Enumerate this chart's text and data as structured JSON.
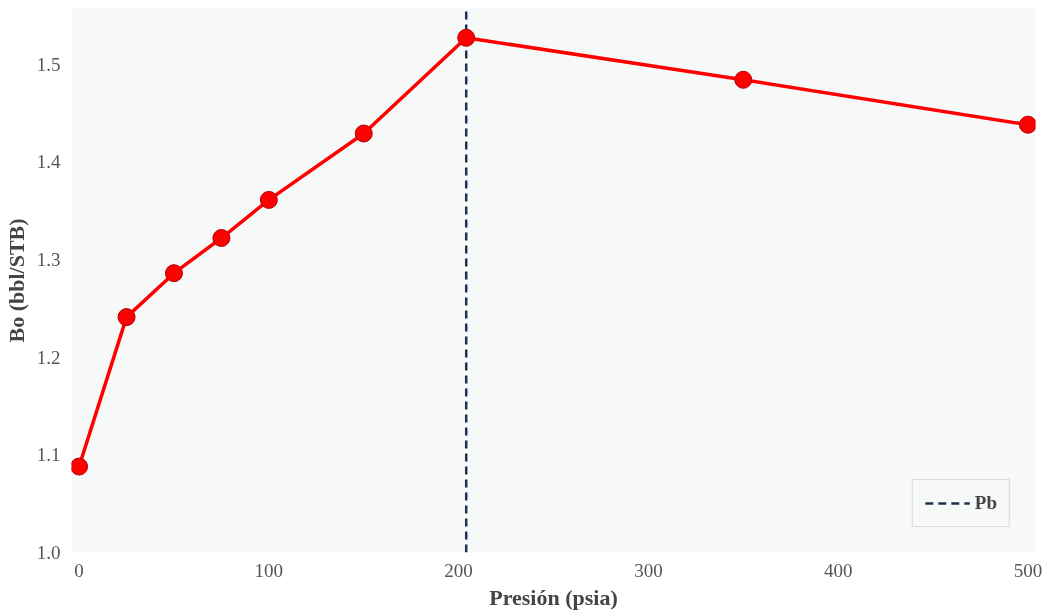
{
  "chart_data": {
    "type": "line",
    "xlabel": "Presión (psia)",
    "ylabel": "Bo (bbl/STB)",
    "x": [
      0,
      25,
      50,
      75,
      100,
      150,
      204,
      350,
      500
    ],
    "series": [
      {
        "color": "#ff0000",
        "values": [
          1.088,
          1.241,
          1.286,
          1.322,
          1.361,
          1.429,
          1.527,
          1.484,
          1.438
        ]
      }
    ],
    "marker": "circle",
    "line_style": "solid",
    "grid": false,
    "legend": "bottom right",
    "xlim": [
      -4,
      504
    ],
    "ylim": [
      1.0,
      1.557
    ],
    "xticks": [
      0,
      100,
      200,
      300,
      400,
      500
    ],
    "yticks": [
      {
        "value": 1.0,
        "label": "1.0"
      },
      {
        "value": 1.1,
        "label": "1.1"
      },
      {
        "value": 1.2,
        "label": "1.2"
      },
      {
        "value": 1.3,
        "label": "1.3"
      },
      {
        "value": 1.4,
        "label": "1.4"
      },
      {
        "value": 1.5,
        "label": "1.5"
      }
    ],
    "ref_lines": [
      {
        "axis": "x",
        "value": 204,
        "label": "Pb",
        "color": "#1f3050",
        "line_style": "dashed"
      }
    ]
  }
}
